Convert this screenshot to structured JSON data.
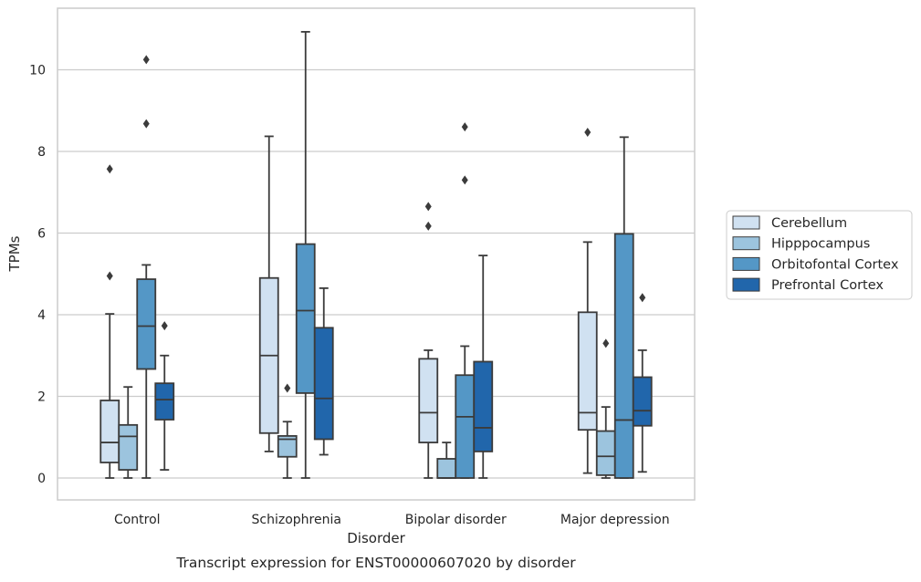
{
  "caption": "Transcript expression for ENST00000607020 by disorder",
  "chart_data": {
    "type": "box",
    "title": "",
    "xlabel": "Disorder",
    "ylabel": "TPMs",
    "ylim": [
      -0.5,
      11.5
    ],
    "yticks": [
      0,
      2,
      4,
      6,
      8,
      10
    ],
    "grid": "horizontal",
    "legend_position": "right",
    "categories": [
      "Control",
      "Schizophrenia",
      "Bipolar disorder",
      "Major depression"
    ],
    "series": [
      {
        "name": "Cerebellum",
        "color": "#d0e1f1",
        "boxes": [
          {
            "whisker_low": 0,
            "q1": 0.38,
            "median": 0.87,
            "q3": 1.9,
            "whisker_high": 4.02,
            "outliers": [
              4.95,
              7.57
            ]
          },
          {
            "whisker_low": 0.65,
            "q1": 1.1,
            "median": 3.0,
            "q3": 4.9,
            "whisker_high": 8.37,
            "outliers": []
          },
          {
            "whisker_low": 0,
            "q1": 0.87,
            "median": 1.6,
            "q3": 2.92,
            "whisker_high": 3.13,
            "outliers": [
              6.17,
              6.65
            ]
          },
          {
            "whisker_low": 0.12,
            "q1": 1.18,
            "median": 1.6,
            "q3": 4.06,
            "whisker_high": 5.78,
            "outliers": [
              8.47
            ]
          }
        ]
      },
      {
        "name": "Hipppocampus",
        "color": "#9cc4de",
        "boxes": [
          {
            "whisker_low": 0,
            "q1": 0.2,
            "median": 1.02,
            "q3": 1.3,
            "whisker_high": 2.23,
            "outliers": []
          },
          {
            "whisker_low": 0,
            "q1": 0.52,
            "median": 0.95,
            "q3": 1.03,
            "whisker_high": 1.38,
            "outliers": [
              2.2
            ]
          },
          {
            "whisker_low": 0,
            "q1": 0,
            "median": 0,
            "q3": 0.47,
            "whisker_high": 0.87,
            "outliers": []
          },
          {
            "whisker_low": 0,
            "q1": 0.07,
            "median": 0.53,
            "q3": 1.15,
            "whisker_high": 1.74,
            "outliers": [
              3.3
            ]
          }
        ]
      },
      {
        "name": "Orbitofontal Cortex",
        "color": "#5497c6",
        "boxes": [
          {
            "whisker_low": 0,
            "q1": 2.67,
            "median": 3.72,
            "q3": 4.87,
            "whisker_high": 5.22,
            "outliers": [
              8.68,
              10.25
            ]
          },
          {
            "whisker_low": 0,
            "q1": 2.08,
            "median": 4.1,
            "q3": 5.73,
            "whisker_high": 10.93,
            "outliers": []
          },
          {
            "whisker_low": 0,
            "q1": 0,
            "median": 1.5,
            "q3": 2.52,
            "whisker_high": 3.23,
            "outliers": [
              7.3,
              8.6
            ]
          },
          {
            "whisker_low": 0,
            "q1": 0,
            "median": 1.42,
            "q3": 5.98,
            "whisker_high": 8.35,
            "outliers": []
          }
        ]
      },
      {
        "name": "Prefrontal Cortex",
        "color": "#2166ab",
        "boxes": [
          {
            "whisker_low": 0.2,
            "q1": 1.43,
            "median": 1.92,
            "q3": 2.32,
            "whisker_high": 3.0,
            "outliers": [
              3.73
            ]
          },
          {
            "whisker_low": 0.57,
            "q1": 0.95,
            "median": 1.95,
            "q3": 3.68,
            "whisker_high": 4.65,
            "outliers": []
          },
          {
            "whisker_low": 0,
            "q1": 0.65,
            "median": 1.23,
            "q3": 2.85,
            "whisker_high": 5.45,
            "outliers": []
          },
          {
            "whisker_low": 0.15,
            "q1": 1.28,
            "median": 1.65,
            "q3": 2.47,
            "whisker_high": 3.13,
            "outliers": [
              4.42
            ]
          }
        ]
      }
    ]
  }
}
